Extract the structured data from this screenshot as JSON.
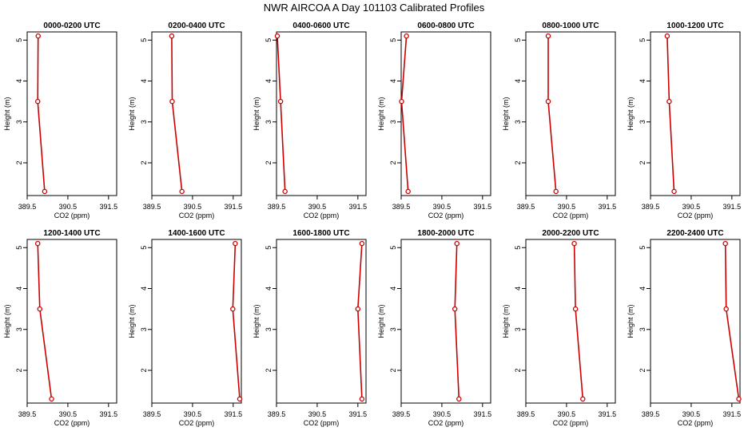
{
  "title": "NWR AIRCOA A  Day 101103  Calibrated Profiles",
  "colors": {
    "profile": "#cc0000",
    "axis": "#000000"
  },
  "chart_data": [
    {
      "type": "line",
      "title": "0000-0200 UTC",
      "xlabel": "CO2 (ppm)",
      "ylabel": "Height (m)",
      "xlim": [
        389.5,
        391.7
      ],
      "ylim": [
        1.2,
        5.2
      ],
      "xticks": [
        389.5,
        390.5,
        391.5
      ],
      "xtick_labels": [
        "389.5",
        "390.5",
        "391.5"
      ],
      "yticks": [
        2,
        3,
        4,
        5
      ],
      "ytick_labels": [
        "2",
        "3",
        "4",
        "5"
      ],
      "x": [
        389.77,
        389.76,
        389.93
      ],
      "y": [
        5.1,
        3.5,
        1.3
      ]
    },
    {
      "type": "line",
      "title": "0200-0400 UTC",
      "xlabel": "CO2 (ppm)",
      "ylabel": "Height (m)",
      "xlim": [
        389.5,
        391.7
      ],
      "ylim": [
        1.2,
        5.2
      ],
      "xticks": [
        389.5,
        390.5,
        391.5
      ],
      "xtick_labels": [
        "389.5",
        "390.5",
        "391.5"
      ],
      "yticks": [
        2,
        3,
        4,
        5
      ],
      "ytick_labels": [
        "2",
        "3",
        "4",
        "5"
      ],
      "x": [
        389.99,
        390.0,
        390.24
      ],
      "y": [
        5.1,
        3.5,
        1.3
      ]
    },
    {
      "type": "line",
      "title": "0400-0600 UTC",
      "xlabel": "CO2 (ppm)",
      "ylabel": "Height (m)",
      "xlim": [
        389.5,
        391.7
      ],
      "ylim": [
        1.2,
        5.2
      ],
      "xticks": [
        389.5,
        390.5,
        391.5
      ],
      "xtick_labels": [
        "389.5",
        "390.5",
        "391.5"
      ],
      "yticks": [
        2,
        3,
        4,
        5
      ],
      "ytick_labels": [
        "2",
        "3",
        "4",
        "5"
      ],
      "x": [
        389.52,
        389.6,
        389.71
      ],
      "y": [
        5.1,
        3.5,
        1.3
      ]
    },
    {
      "type": "line",
      "title": "0600-0800 UTC",
      "xlabel": "CO2 (ppm)",
      "ylabel": "Height (m)",
      "xlim": [
        389.5,
        391.7
      ],
      "ylim": [
        1.2,
        5.2
      ],
      "xticks": [
        389.5,
        390.5,
        391.5
      ],
      "xtick_labels": [
        "389.5",
        "390.5",
        "391.5"
      ],
      "yticks": [
        2,
        3,
        4,
        5
      ],
      "ytick_labels": [
        "2",
        "3",
        "4",
        "5"
      ],
      "x": [
        389.63,
        389.51,
        389.67
      ],
      "y": [
        5.1,
        3.5,
        1.3
      ]
    },
    {
      "type": "line",
      "title": "0800-1000 UTC",
      "xlabel": "CO2 (ppm)",
      "ylabel": "Height (m)",
      "xlim": [
        389.5,
        391.7
      ],
      "ylim": [
        1.2,
        5.2
      ],
      "xticks": [
        389.5,
        390.5,
        391.5
      ],
      "xtick_labels": [
        "389.5",
        "390.5",
        "391.5"
      ],
      "yticks": [
        2,
        3,
        4,
        5
      ],
      "ytick_labels": [
        "2",
        "3",
        "4",
        "5"
      ],
      "x": [
        390.05,
        390.05,
        390.24
      ],
      "y": [
        5.1,
        3.5,
        1.3
      ]
    },
    {
      "type": "line",
      "title": "1000-1200 UTC",
      "xlabel": "CO2 (ppm)",
      "ylabel": "Height (m)",
      "xlim": [
        389.5,
        391.7
      ],
      "ylim": [
        1.2,
        5.2
      ],
      "xticks": [
        389.5,
        390.5,
        391.5
      ],
      "xtick_labels": [
        "389.5",
        "390.5",
        "391.5"
      ],
      "yticks": [
        2,
        3,
        4,
        5
      ],
      "ytick_labels": [
        "2",
        "3",
        "4",
        "5"
      ],
      "x": [
        389.91,
        389.96,
        390.08
      ],
      "y": [
        5.1,
        3.5,
        1.3
      ]
    },
    {
      "type": "line",
      "title": "1200-1400 UTC",
      "xlabel": "CO2 (ppm)",
      "ylabel": "Height (m)",
      "xlim": [
        389.5,
        391.7
      ],
      "ylim": [
        1.2,
        5.2
      ],
      "xticks": [
        389.5,
        390.5,
        391.5
      ],
      "xtick_labels": [
        "389.5",
        "390.5",
        "391.5"
      ],
      "yticks": [
        2,
        3,
        4,
        5
      ],
      "ytick_labels": [
        "2",
        "3",
        "4",
        "5"
      ],
      "x": [
        389.76,
        389.81,
        390.1
      ],
      "y": [
        5.1,
        3.5,
        1.3
      ]
    },
    {
      "type": "line",
      "title": "1400-1600 UTC",
      "xlabel": "CO2 (ppm)",
      "ylabel": "Height (m)",
      "xlim": [
        389.5,
        391.7
      ],
      "ylim": [
        1.2,
        5.2
      ],
      "xticks": [
        389.5,
        390.5,
        391.5
      ],
      "xtick_labels": [
        "389.5",
        "390.5",
        "391.5"
      ],
      "yticks": [
        2,
        3,
        4,
        5
      ],
      "ytick_labels": [
        "2",
        "3",
        "4",
        "5"
      ],
      "x": [
        391.55,
        391.49,
        391.66
      ],
      "y": [
        5.1,
        3.5,
        1.3
      ]
    },
    {
      "type": "line",
      "title": "1600-1800 UTC",
      "xlabel": "CO2 (ppm)",
      "ylabel": "Height (m)",
      "xlim": [
        389.5,
        391.7
      ],
      "ylim": [
        1.2,
        5.2
      ],
      "xticks": [
        389.5,
        390.5,
        391.5
      ],
      "xtick_labels": [
        "389.5",
        "390.5",
        "391.5"
      ],
      "yticks": [
        2,
        3,
        4,
        5
      ],
      "ytick_labels": [
        "2",
        "3",
        "4",
        "5"
      ],
      "x": [
        391.6,
        391.5,
        391.6
      ],
      "y": [
        5.1,
        3.5,
        1.3
      ]
    },
    {
      "type": "line",
      "title": "1800-2000 UTC",
      "xlabel": "CO2 (ppm)",
      "ylabel": "Height (m)",
      "xlim": [
        389.5,
        391.7
      ],
      "ylim": [
        1.2,
        5.2
      ],
      "xticks": [
        389.5,
        390.5,
        391.5
      ],
      "xtick_labels": [
        "389.5",
        "390.5",
        "391.5"
      ],
      "yticks": [
        2,
        3,
        4,
        5
      ],
      "ytick_labels": [
        "2",
        "3",
        "4",
        "5"
      ],
      "x": [
        390.87,
        390.82,
        390.92
      ],
      "y": [
        5.1,
        3.5,
        1.3
      ]
    },
    {
      "type": "line",
      "title": "2000-2200 UTC",
      "xlabel": "CO2 (ppm)",
      "ylabel": "Height (m)",
      "xlim": [
        389.5,
        391.7
      ],
      "ylim": [
        1.2,
        5.2
      ],
      "xticks": [
        389.5,
        390.5,
        391.5
      ],
      "xtick_labels": [
        "389.5",
        "390.5",
        "391.5"
      ],
      "yticks": [
        2,
        3,
        4,
        5
      ],
      "ytick_labels": [
        "2",
        "3",
        "4",
        "5"
      ],
      "x": [
        390.69,
        390.72,
        390.9
      ],
      "y": [
        5.1,
        3.5,
        1.3
      ]
    },
    {
      "type": "line",
      "title": "2200-2400 UTC",
      "xlabel": "CO2 (ppm)",
      "ylabel": "Height (m)",
      "xlim": [
        389.5,
        391.7
      ],
      "ylim": [
        1.2,
        5.2
      ],
      "xticks": [
        389.5,
        390.5,
        391.5
      ],
      "xtick_labels": [
        "389.5",
        "390.5",
        "391.5"
      ],
      "yticks": [
        2,
        3,
        4,
        5
      ],
      "ytick_labels": [
        "2",
        "3",
        "4",
        "5"
      ],
      "x": [
        391.34,
        391.36,
        391.67
      ],
      "y": [
        5.1,
        3.5,
        1.3
      ]
    }
  ]
}
